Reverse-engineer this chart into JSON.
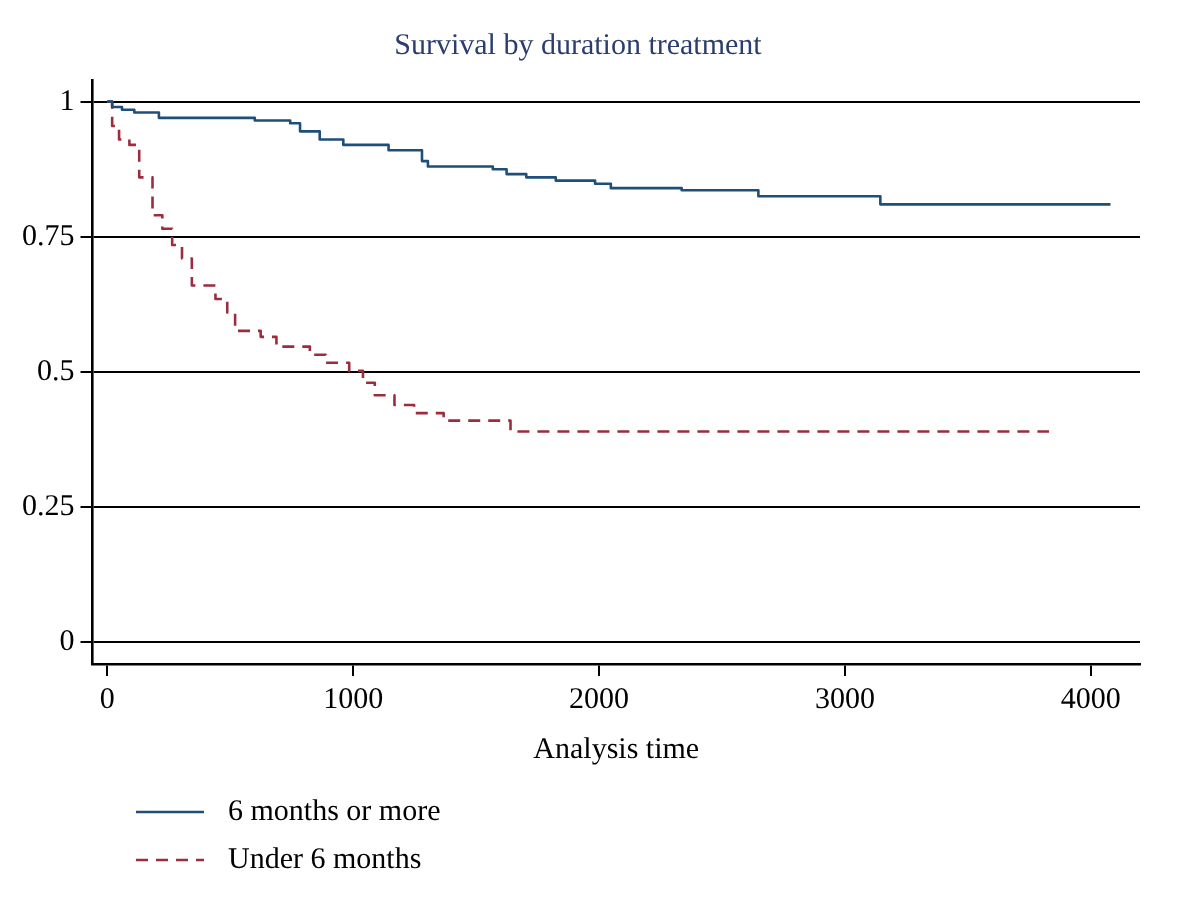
{
  "chart_data": {
    "type": "step",
    "title": "Survival by duration treatment",
    "xlabel": "Analysis time",
    "xlim": [
      -60,
      4200
    ],
    "xticks": [
      0,
      1000,
      2000,
      3000,
      4000
    ],
    "ylim": [
      -0.04,
      1.04
    ],
    "yticks": [
      0,
      0.25,
      0.5,
      0.75,
      1
    ],
    "grid": "y",
    "legend": "bottom left",
    "series": [
      {
        "name": "6 months or more",
        "color": "#1f4e7a",
        "line_style": "solid",
        "x": [
          0,
          20,
          60,
          110,
          210,
          600,
          744,
          784,
          864,
          960,
          1144,
          1280,
          1304,
          1568,
          1624,
          1704,
          1824,
          1984,
          2048,
          2336,
          2648,
          3144,
          4080
        ],
        "values": [
          1,
          0.99,
          0.985,
          0.98,
          0.97,
          0.965,
          0.96,
          0.945,
          0.93,
          0.92,
          0.91,
          0.89,
          0.88,
          0.875,
          0.866,
          0.86,
          0.854,
          0.848,
          0.84,
          0.836,
          0.825,
          0.81,
          0.81
        ]
      },
      {
        "name": "Under 6 months",
        "color": "#9b2d3f",
        "line_style": "dashed",
        "x": [
          0,
          20,
          48,
          90,
          130,
          184,
          224,
          264,
          304,
          344,
          440,
          488,
          520,
          624,
          688,
          824,
          888,
          984,
          1040,
          1088,
          1168,
          1248,
          1368,
          1640,
          3830
        ],
        "values": [
          1,
          0.955,
          0.93,
          0.92,
          0.86,
          0.79,
          0.765,
          0.735,
          0.71,
          0.66,
          0.635,
          0.61,
          0.576,
          0.565,
          0.547,
          0.532,
          0.517,
          0.502,
          0.48,
          0.457,
          0.439,
          0.424,
          0.41,
          0.39,
          0.39
        ]
      }
    ]
  }
}
